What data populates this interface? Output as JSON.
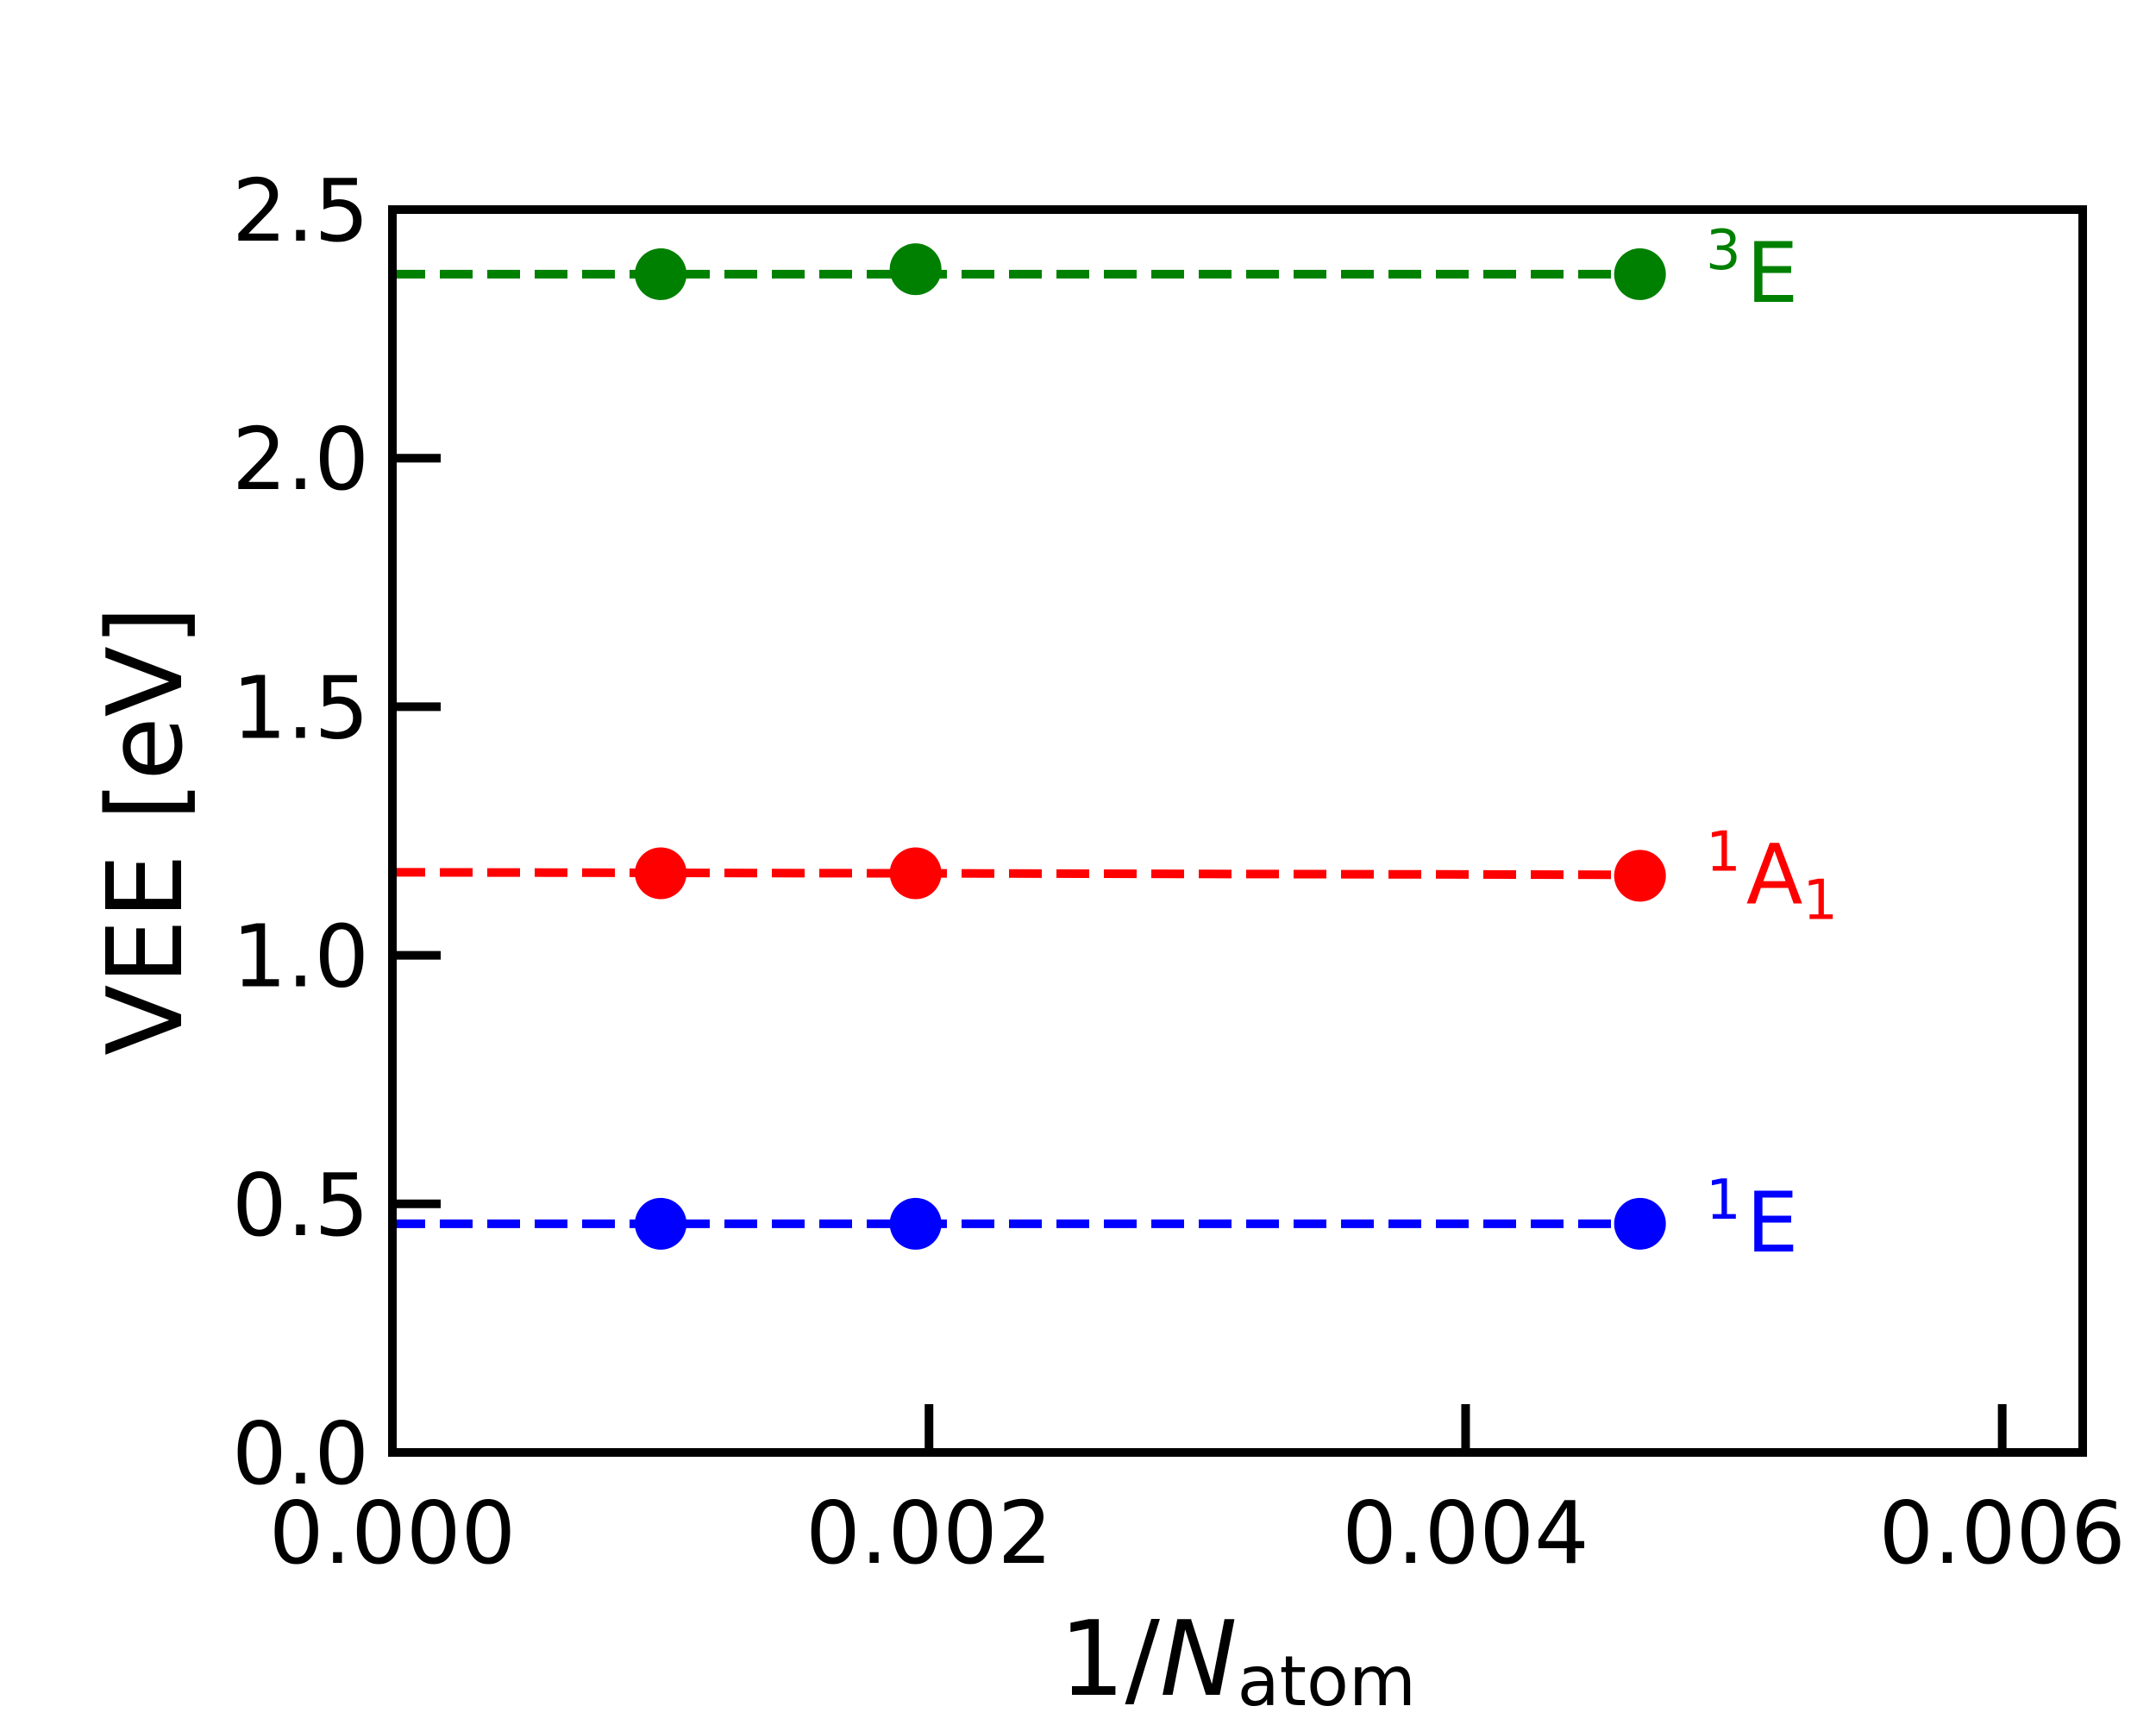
{
  "chart_data": {
    "type": "line",
    "title": "",
    "xlabel": {
      "main": "1/",
      "italic": "N",
      "subscript": "atom"
    },
    "ylabel": "VEE [eV]",
    "xlim": [
      0,
      0.0063
    ],
    "ylim": [
      0,
      2.5
    ],
    "xticks": [
      0,
      0.002,
      0.004,
      0.006
    ],
    "xtick_labels": [
      "0.000",
      "0.002",
      "0.004",
      "0.006"
    ],
    "yticks": [
      0,
      0.5,
      1.0,
      1.5,
      2.0,
      2.5
    ],
    "ytick_labels": [
      "0.0",
      "0.5",
      "1.0",
      "1.5",
      "2.0",
      "2.5"
    ],
    "grid": false,
    "legend": "none",
    "x": [
      0.001,
      0.00195,
      0.00465
    ],
    "series": [
      {
        "label": {
          "pre": "3",
          "main": "E",
          "sub": ""
        },
        "color": "#008000",
        "values": [
          2.37,
          2.38,
          2.37
        ],
        "fit": {
          "intercept": 2.37,
          "slope": 0
        }
      },
      {
        "label": {
          "pre": "1",
          "main": "A",
          "sub": "1"
        },
        "color": "#ff0000",
        "values": [
          1.165,
          1.165,
          1.16
        ],
        "fit": {
          "intercept": 1.167,
          "slope": -1.1
        }
      },
      {
        "label": {
          "pre": "1",
          "main": "E",
          "sub": ""
        },
        "color": "#0000ff",
        "values": [
          0.46,
          0.46,
          0.46
        ],
        "fit": {
          "intercept": 0.46,
          "slope": 0
        }
      }
    ]
  }
}
